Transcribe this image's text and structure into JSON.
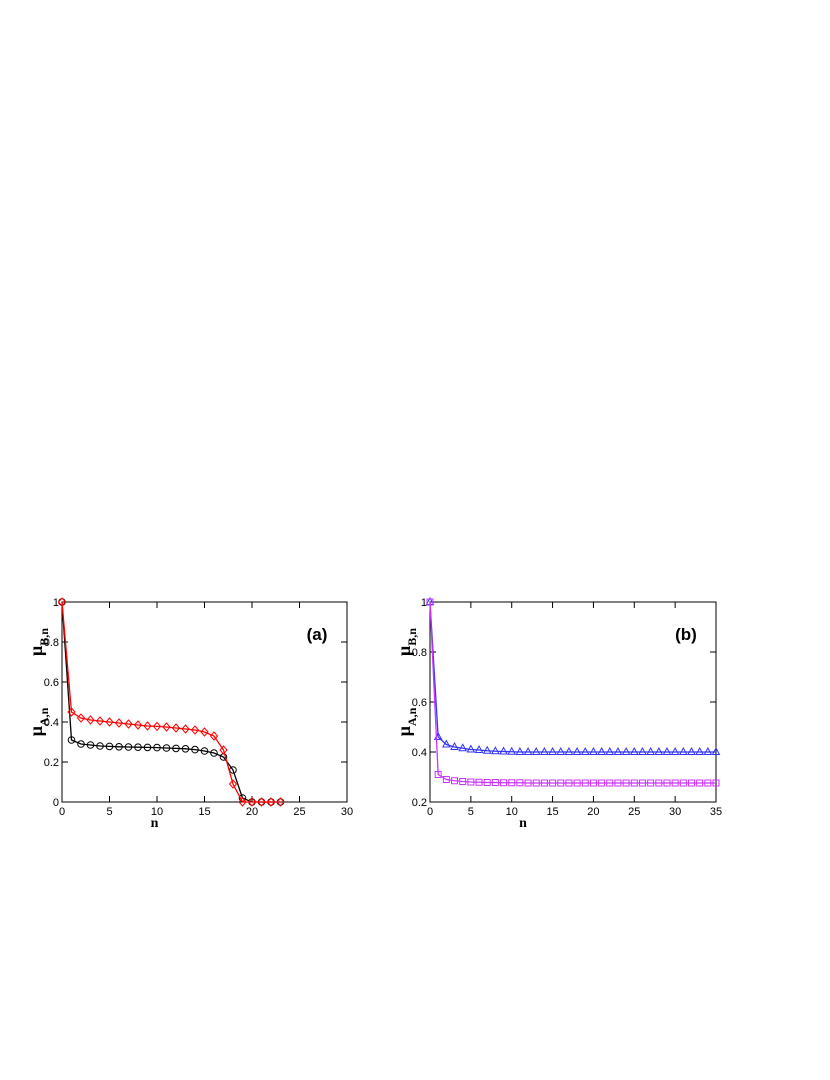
{
  "chart_data": [
    {
      "type": "line",
      "annotation": "(a)",
      "xlabel": "n",
      "ylabels": [
        [
          "μ",
          "A,n"
        ],
        [
          "μ",
          "B,n"
        ]
      ],
      "xlim": [
        0,
        30
      ],
      "ylim": [
        0,
        1
      ],
      "xticks": [
        0,
        5,
        10,
        15,
        20,
        25,
        30
      ],
      "yticks": [
        0,
        0.2,
        0.4,
        0.6,
        0.8,
        1
      ],
      "x": [
        0,
        1,
        2,
        3,
        4,
        5,
        6,
        7,
        8,
        9,
        10,
        11,
        12,
        13,
        14,
        15,
        16,
        17,
        18,
        19,
        20,
        21,
        22,
        23
      ],
      "series": [
        {
          "color": "#000000",
          "marker": "circle",
          "values": [
            1,
            0.31,
            0.29,
            0.285,
            0.28,
            0.278,
            0.276,
            0.275,
            0.274,
            0.273,
            0.272,
            0.27,
            0.268,
            0.266,
            0.262,
            0.255,
            0.245,
            0.225,
            0.16,
            0.02,
            0,
            0,
            0,
            0
          ]
        },
        {
          "color": "#ff0000",
          "marker": "diamond",
          "values": [
            1,
            0.45,
            0.42,
            0.41,
            0.405,
            0.4,
            0.395,
            0.39,
            0.385,
            0.38,
            0.378,
            0.375,
            0.37,
            0.365,
            0.36,
            0.35,
            0.33,
            0.26,
            0.09,
            0,
            0,
            0,
            0,
            0
          ]
        }
      ]
    },
    {
      "type": "line",
      "annotation": "(b)",
      "xlabel": "n",
      "ylabels": [
        [
          "μ",
          "A,n"
        ],
        [
          "μ",
          "B,n"
        ]
      ],
      "xlim": [
        0,
        35
      ],
      "ylim": [
        0.2,
        1
      ],
      "xticks": [
        0,
        5,
        10,
        15,
        20,
        25,
        30,
        35
      ],
      "yticks": [
        0.2,
        0.4,
        0.6,
        0.8,
        1
      ],
      "x": [
        0,
        1,
        2,
        3,
        4,
        5,
        6,
        7,
        8,
        9,
        10,
        11,
        12,
        13,
        14,
        15,
        16,
        17,
        18,
        19,
        20,
        21,
        22,
        23,
        24,
        25,
        26,
        27,
        28,
        29,
        30,
        31,
        32,
        33,
        34,
        35
      ],
      "series": [
        {
          "color": "#3333ff",
          "marker": "triangle",
          "values": [
            1,
            0.46,
            0.43,
            0.42,
            0.415,
            0.41,
            0.408,
            0.405,
            0.403,
            0.402,
            0.401,
            0.4,
            0.4,
            0.4,
            0.4,
            0.4,
            0.4,
            0.4,
            0.4,
            0.4,
            0.4,
            0.4,
            0.4,
            0.4,
            0.4,
            0.4,
            0.4,
            0.4,
            0.4,
            0.4,
            0.4,
            0.4,
            0.4,
            0.4,
            0.4,
            0.4
          ]
        },
        {
          "color": "#cc33ff",
          "marker": "square",
          "values": [
            1,
            0.31,
            0.29,
            0.285,
            0.282,
            0.28,
            0.279,
            0.278,
            0.278,
            0.277,
            0.277,
            0.277,
            0.276,
            0.276,
            0.276,
            0.276,
            0.276,
            0.276,
            0.276,
            0.276,
            0.276,
            0.276,
            0.276,
            0.276,
            0.276,
            0.276,
            0.276,
            0.276,
            0.276,
            0.276,
            0.276,
            0.276,
            0.276,
            0.276,
            0.276,
            0.276
          ]
        }
      ]
    }
  ]
}
